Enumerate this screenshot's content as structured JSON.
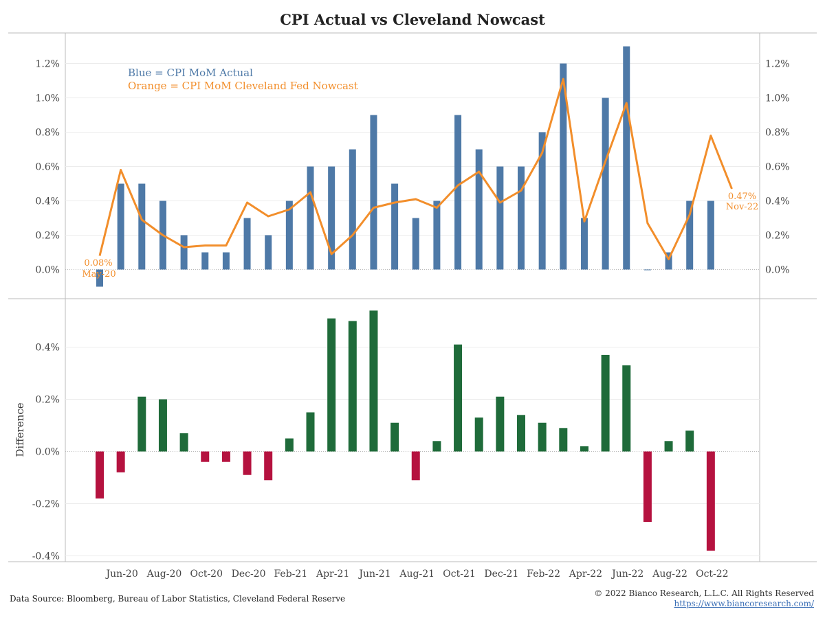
{
  "title": "CPI Actual vs Cleveland Nowcast",
  "footer": {
    "source": "Data Source: Bloomberg, Bureau of Labor Statistics, Cleveland Federal Reserve",
    "copyright": "© 2022 Bianco Research, L.L.C. All Rights Reserved",
    "url": "https://www.biancoresearch.com/"
  },
  "colors": {
    "actual": "#4e79a7",
    "nowcast": "#f28e2b",
    "positive": "#1f6b3a",
    "negative": "#b5123f",
    "axis": "#bbbbbb",
    "grid": "#ececec"
  },
  "chart_data": [
    {
      "type": "bar+line",
      "legend": [
        {
          "text": "Blue = CPI MoM Actual",
          "color": "#4e79a7"
        },
        {
          "text": "Orange = CPI MoM Cleveland Fed Nowcast",
          "color": "#f28e2b"
        }
      ],
      "months": [
        "May-20",
        "Jun-20",
        "Jul-20",
        "Aug-20",
        "Sep-20",
        "Oct-20",
        "Nov-20",
        "Dec-20",
        "Jan-21",
        "Feb-21",
        "Mar-21",
        "Apr-21",
        "May-21",
        "Jun-21",
        "Jul-21",
        "Aug-21",
        "Sep-21",
        "Oct-21",
        "Nov-21",
        "Dec-21",
        "Jan-22",
        "Feb-22",
        "Mar-22",
        "Apr-22",
        "May-22",
        "Jun-22",
        "Jul-22",
        "Aug-22",
        "Sep-22",
        "Oct-22",
        "Nov-22"
      ],
      "x_tick_labels": [
        "Jun-20",
        "Aug-20",
        "Oct-20",
        "Dec-20",
        "Feb-21",
        "Apr-21",
        "Jun-21",
        "Aug-21",
        "Oct-21",
        "Dec-21",
        "Feb-22",
        "Apr-22",
        "Jun-22",
        "Aug-22",
        "Oct-22"
      ],
      "series": [
        {
          "values": [
            -0.1,
            0.5,
            0.5,
            0.4,
            0.2,
            0.1,
            0.1,
            0.3,
            0.2,
            0.4,
            0.6,
            0.6,
            0.7,
            0.9,
            0.5,
            0.3,
            0.4,
            0.9,
            0.7,
            0.6,
            0.6,
            0.8,
            1.2,
            0.3,
            1.0,
            1.3,
            0.0,
            0.1,
            0.4,
            0.4,
            null
          ]
        },
        {
          "values": [
            0.08,
            0.58,
            0.29,
            0.2,
            0.13,
            0.14,
            0.14,
            0.39,
            0.31,
            0.35,
            0.45,
            0.09,
            0.2,
            0.36,
            0.39,
            0.41,
            0.36,
            0.49,
            0.57,
            0.39,
            0.46,
            0.68,
            1.11,
            0.28,
            0.63,
            0.97,
            0.27,
            0.06,
            0.32,
            0.78,
            0.47
          ]
        }
      ],
      "y_ticks": [
        "0.0%",
        "0.2%",
        "0.4%",
        "0.6%",
        "0.8%",
        "1.0%",
        "1.2%"
      ],
      "ylim": [
        -0.17,
        1.37
      ],
      "grid": true,
      "annotations": [
        {
          "month": "May-20",
          "value_text": "0.08%",
          "label_text": "May-20"
        },
        {
          "month": "Nov-22",
          "value_text": "0.47%",
          "label_text": "Nov-22"
        }
      ]
    },
    {
      "type": "bar",
      "ylabel": "Difference",
      "values": [
        -0.18,
        -0.08,
        0.21,
        0.2,
        0.07,
        -0.04,
        -0.04,
        -0.09,
        -0.11,
        0.05,
        0.15,
        0.51,
        0.5,
        0.54,
        0.11,
        -0.11,
        0.04,
        0.41,
        0.13,
        0.21,
        0.14,
        0.11,
        0.09,
        0.02,
        0.37,
        0.33,
        -0.27,
        0.04,
        0.08,
        -0.38,
        null
      ],
      "y_ticks": [
        "-0.4%",
        "-0.2%",
        "0.0%",
        "0.2%",
        "0.4%"
      ],
      "ylim": [
        -0.42,
        0.555
      ],
      "grid": true
    }
  ]
}
